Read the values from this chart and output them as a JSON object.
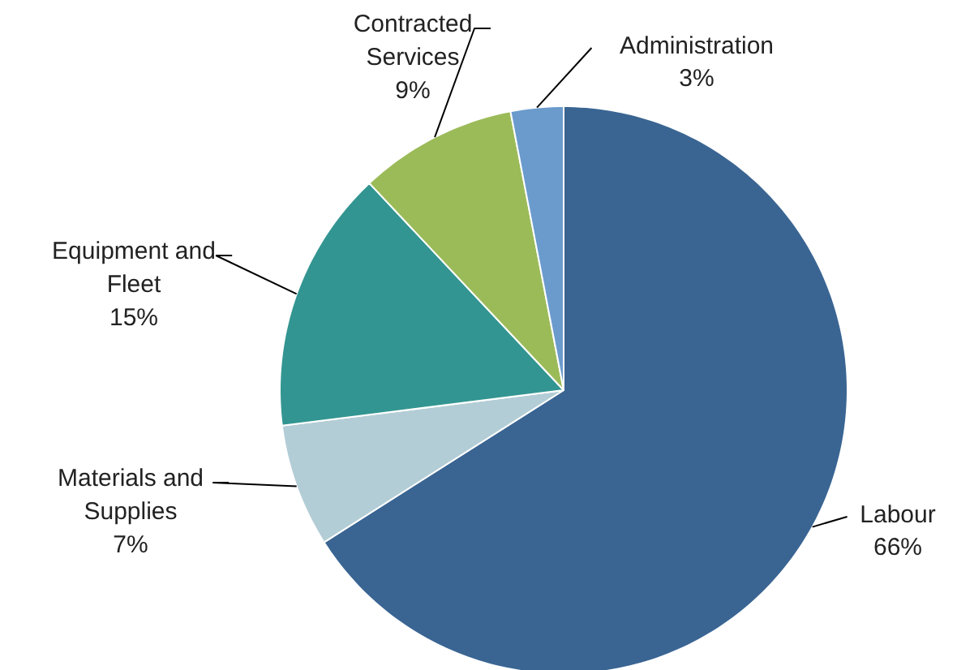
{
  "chart_data": {
    "type": "pie",
    "categories": [
      "Labour",
      "Materials and Supplies",
      "Equipment and Fleet",
      "Contracted Services",
      "Administration"
    ],
    "values": [
      66,
      7,
      15,
      9,
      3
    ],
    "value_labels": [
      "66%",
      "7%",
      "15%",
      "9%",
      "3%"
    ],
    "colors": [
      "#3a6593",
      "#b3cdd6",
      "#339591",
      "#9bbb59",
      "#6b9bcc"
    ]
  }
}
